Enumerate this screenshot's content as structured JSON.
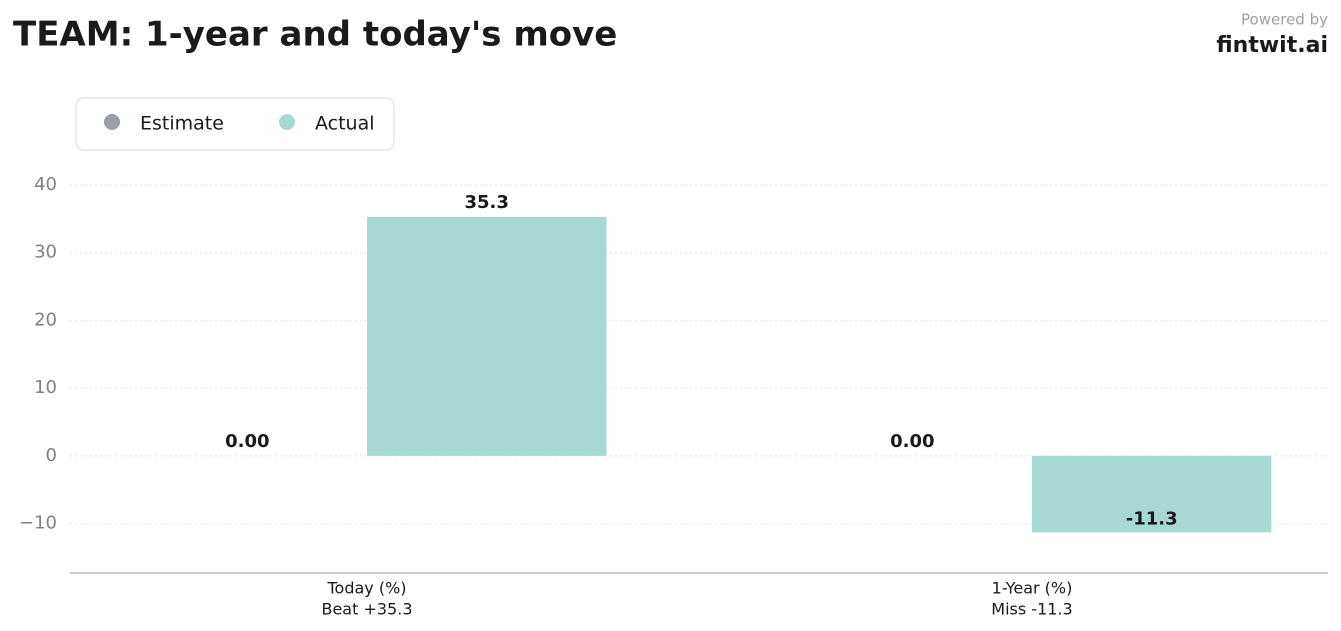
{
  "chart_data": {
    "type": "bar",
    "title": "TEAM: 1-year and today's move",
    "credit": "Powered by",
    "brand": "fintwit.ai",
    "categories": [
      "Today (%)",
      "1-Year (%)"
    ],
    "category_sublabels": [
      "Beat +35.3",
      "Miss -11.3"
    ],
    "series": [
      {
        "name": "Estimate",
        "color": "#9aa0a6",
        "values": [
          0,
          0
        ],
        "value_labels": [
          "0.00",
          "0.00"
        ]
      },
      {
        "name": "Actual",
        "color": "#a8d8d4",
        "values": [
          35.3,
          -11.3
        ]
      }
    ],
    "ylim": [
      -17.3,
      44.5
    ],
    "yticks": [
      {
        "value": -10,
        "label": "−10"
      },
      0,
      10,
      20,
      30,
      40
    ],
    "grid": true,
    "legend": "upper left"
  }
}
